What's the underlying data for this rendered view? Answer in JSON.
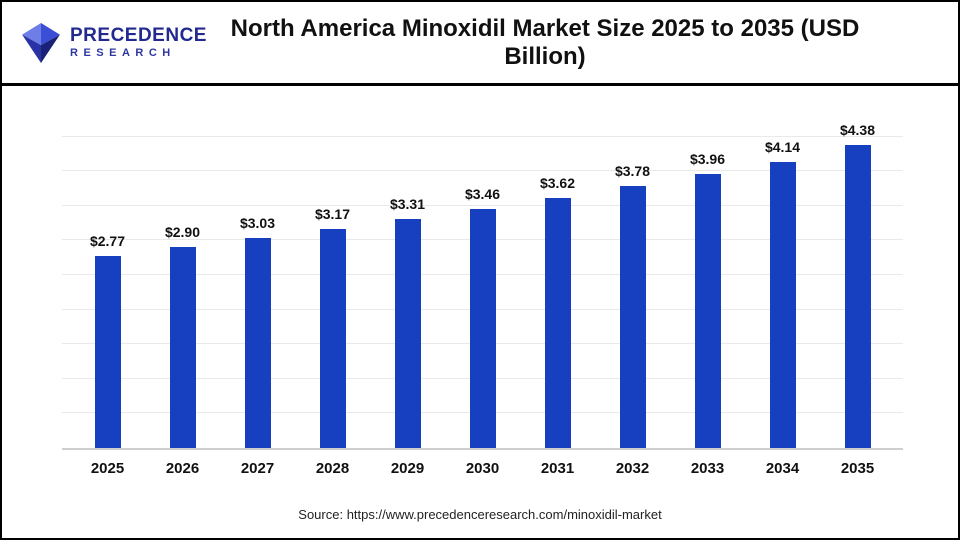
{
  "header": {
    "logo": {
      "line1": "PRECEDENCE",
      "line2": "RESEARCH"
    },
    "title": "North America Minoxidil Market Size 2025 to 2035 (USD Billion)"
  },
  "footer": {
    "source": "Source: https://www.precedenceresearch.com/minoxidil-market"
  },
  "chart_data": {
    "type": "bar",
    "title": "North America Minoxidil Market Size 2025 to 2035 (USD Billion)",
    "categories": [
      "2025",
      "2026",
      "2027",
      "2028",
      "2029",
      "2030",
      "2031",
      "2032",
      "2033",
      "2034",
      "2035"
    ],
    "values": [
      2.77,
      2.9,
      3.03,
      3.17,
      3.31,
      3.46,
      3.62,
      3.78,
      3.96,
      4.14,
      4.38
    ],
    "value_labels": [
      "$2.77",
      "$2.90",
      "$3.03",
      "$3.17",
      "$3.31",
      "$3.46",
      "$3.62",
      "$3.78",
      "$3.96",
      "$4.14",
      "$4.38"
    ],
    "unit": "USD Billion",
    "xlabel": "",
    "ylabel": "",
    "ylim": [
      0,
      5
    ],
    "grid_step": 0.5,
    "grid": true,
    "legend": false,
    "bar_color": "#1640c0",
    "grid_color": "#e9e9e9",
    "axis_color": "#cfcfcf"
  }
}
